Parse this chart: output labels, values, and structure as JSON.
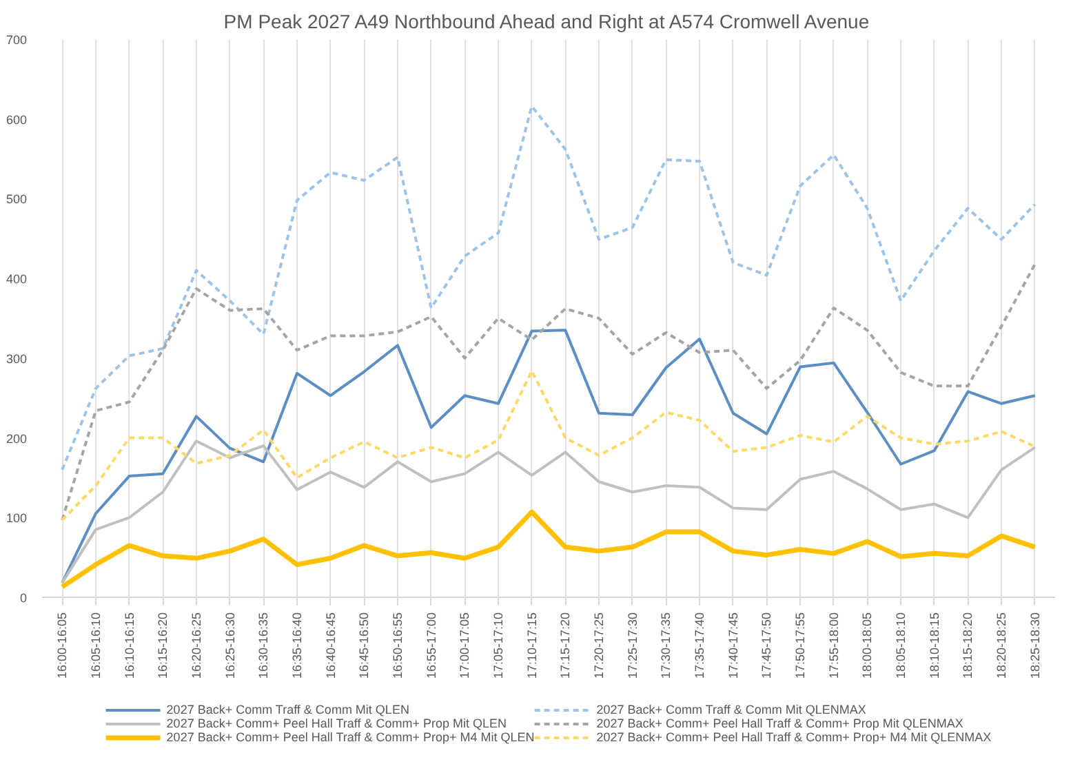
{
  "chart_data": {
    "type": "line",
    "title": "PM Peak 2027 A49 Northbound Ahead and Right at A574 Cromwell Avenue",
    "categories": [
      "16:00-16:05",
      "16:05-16:10",
      "16:10-16:15",
      "16:15-16:20",
      "16:20-16:25",
      "16:25-16:30",
      "16:30-16:35",
      "16:35-16:40",
      "16:40-16:45",
      "16:45-16:50",
      "16:50-16:55",
      "16:55-17:00",
      "17:00-17:05",
      "17:05-17:10",
      "17:10-17:15",
      "17:15-17:20",
      "17:20-17:25",
      "17:25-17:30",
      "17:30-17:35",
      "17:35-17:40",
      "17:40-17:45",
      "17:45-17:50",
      "17:50-17:55",
      "17:55-18:00",
      "18:00-18:05",
      "18:05-18:10",
      "18:10-18:15",
      "18:15-18:20",
      "18:20-18:25",
      "18:25-18:30"
    ],
    "series": [
      {
        "name": "2027 Back+ Comm Traff & Comm Mit QLEN",
        "color": "#5b8fc4",
        "line_style": "solid",
        "values": [
          18,
          105,
          152,
          155,
          227,
          187,
          170,
          281,
          253,
          283,
          316,
          213,
          253,
          243,
          334,
          335,
          231,
          229,
          288,
          324,
          231,
          205,
          289,
          294,
          232,
          167,
          184,
          258,
          243,
          253
        ]
      },
      {
        "name": "2027 Back+ Comm Traff & Comm Mit QLENMAX",
        "color": "#9dc3e6",
        "line_style": "dashed",
        "values": [
          160,
          262,
          303,
          312,
          410,
          372,
          330,
          498,
          533,
          523,
          552,
          363,
          428,
          457,
          616,
          562,
          449,
          464,
          549,
          547,
          420,
          404,
          516,
          555,
          488,
          372,
          435,
          488,
          449,
          493
        ]
      },
      {
        "name": "2027 Back+ Comm+ Peel Hall Traff & Comm+ Prop Mit QLEN",
        "color": "#c0c0c0",
        "line_style": "solid",
        "values": [
          18,
          85,
          100,
          132,
          196,
          175,
          190,
          135,
          157,
          138,
          170,
          145,
          155,
          182,
          153,
          182,
          145,
          132,
          140,
          138,
          112,
          110,
          148,
          158,
          136,
          110,
          117,
          100,
          160,
          188
        ]
      },
      {
        "name": "2027 Back+ Comm+ Peel Hall Traff & Comm+ Prop Mit QLENMAX",
        "color": "#a5a5a5",
        "line_style": "dashed",
        "values": [
          97,
          234,
          245,
          310,
          387,
          360,
          362,
          310,
          328,
          328,
          333,
          352,
          300,
          350,
          323,
          362,
          350,
          305,
          332,
          307,
          310,
          262,
          297,
          363,
          335,
          282,
          265,
          265,
          340,
          418
        ]
      },
      {
        "name": "2027 Back+ Comm+ Peel Hall Traff & Comm+ Prop+ M4 Mit QLEN",
        "color": "#ffc000",
        "line_style": "solid",
        "values": [
          13,
          41,
          65,
          52,
          49,
          58,
          73,
          41,
          49,
          65,
          52,
          56,
          49,
          63,
          107,
          63,
          58,
          63,
          82,
          82,
          58,
          53,
          60,
          55,
          70,
          51,
          55,
          52,
          77,
          63
        ]
      },
      {
        "name": "2027 Back+ Comm+ Peel Hall Traff & Comm+ Prop+ M4 Mit QLENMAX",
        "color": "#ffd966",
        "line_style": "dashed",
        "values": [
          97,
          140,
          200,
          200,
          168,
          178,
          210,
          150,
          175,
          195,
          175,
          188,
          175,
          197,
          284,
          200,
          178,
          200,
          232,
          222,
          183,
          188,
          203,
          195,
          227,
          200,
          192,
          196,
          208,
          189
        ]
      }
    ],
    "ylim": [
      0,
      700
    ],
    "yticks": [
      0,
      100,
      200,
      300,
      400,
      500,
      600,
      700
    ],
    "grid": "x",
    "legend": "bottom"
  }
}
